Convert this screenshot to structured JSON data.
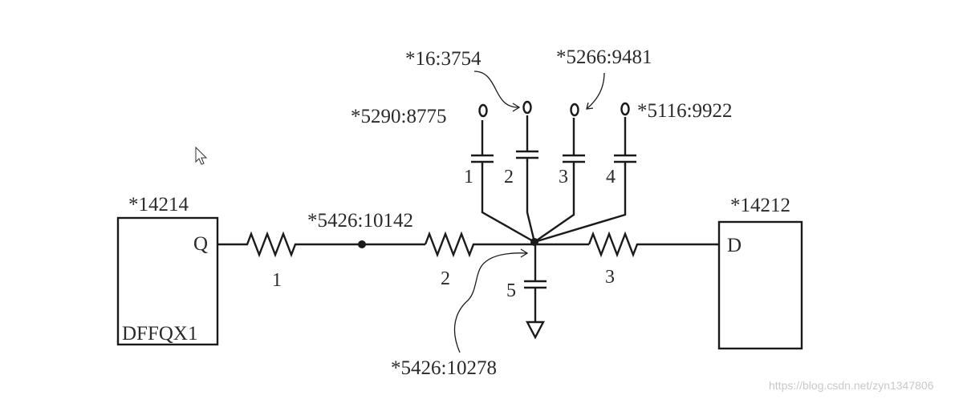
{
  "cells": {
    "left": {
      "name": "*14214",
      "pin": "Q",
      "type": "DFFQX1"
    },
    "right": {
      "name": "*14212",
      "pin": "D"
    }
  },
  "nodes": {
    "mid_node": "*5426:10142",
    "center_node": "*5426:10278",
    "cap1_node": "*5290:8775",
    "cap2_node": "*16:3754",
    "cap3_node": "*5266:9481",
    "cap4_node": "*5116:9922"
  },
  "resistors": [
    "1",
    "2",
    "3"
  ],
  "capacitors": [
    "1",
    "2",
    "3",
    "4",
    "5"
  ],
  "watermark": "https://blog.csdn.net/zyn1347806",
  "icons": [
    "cursor-arrow-icon",
    "ground-icon"
  ]
}
